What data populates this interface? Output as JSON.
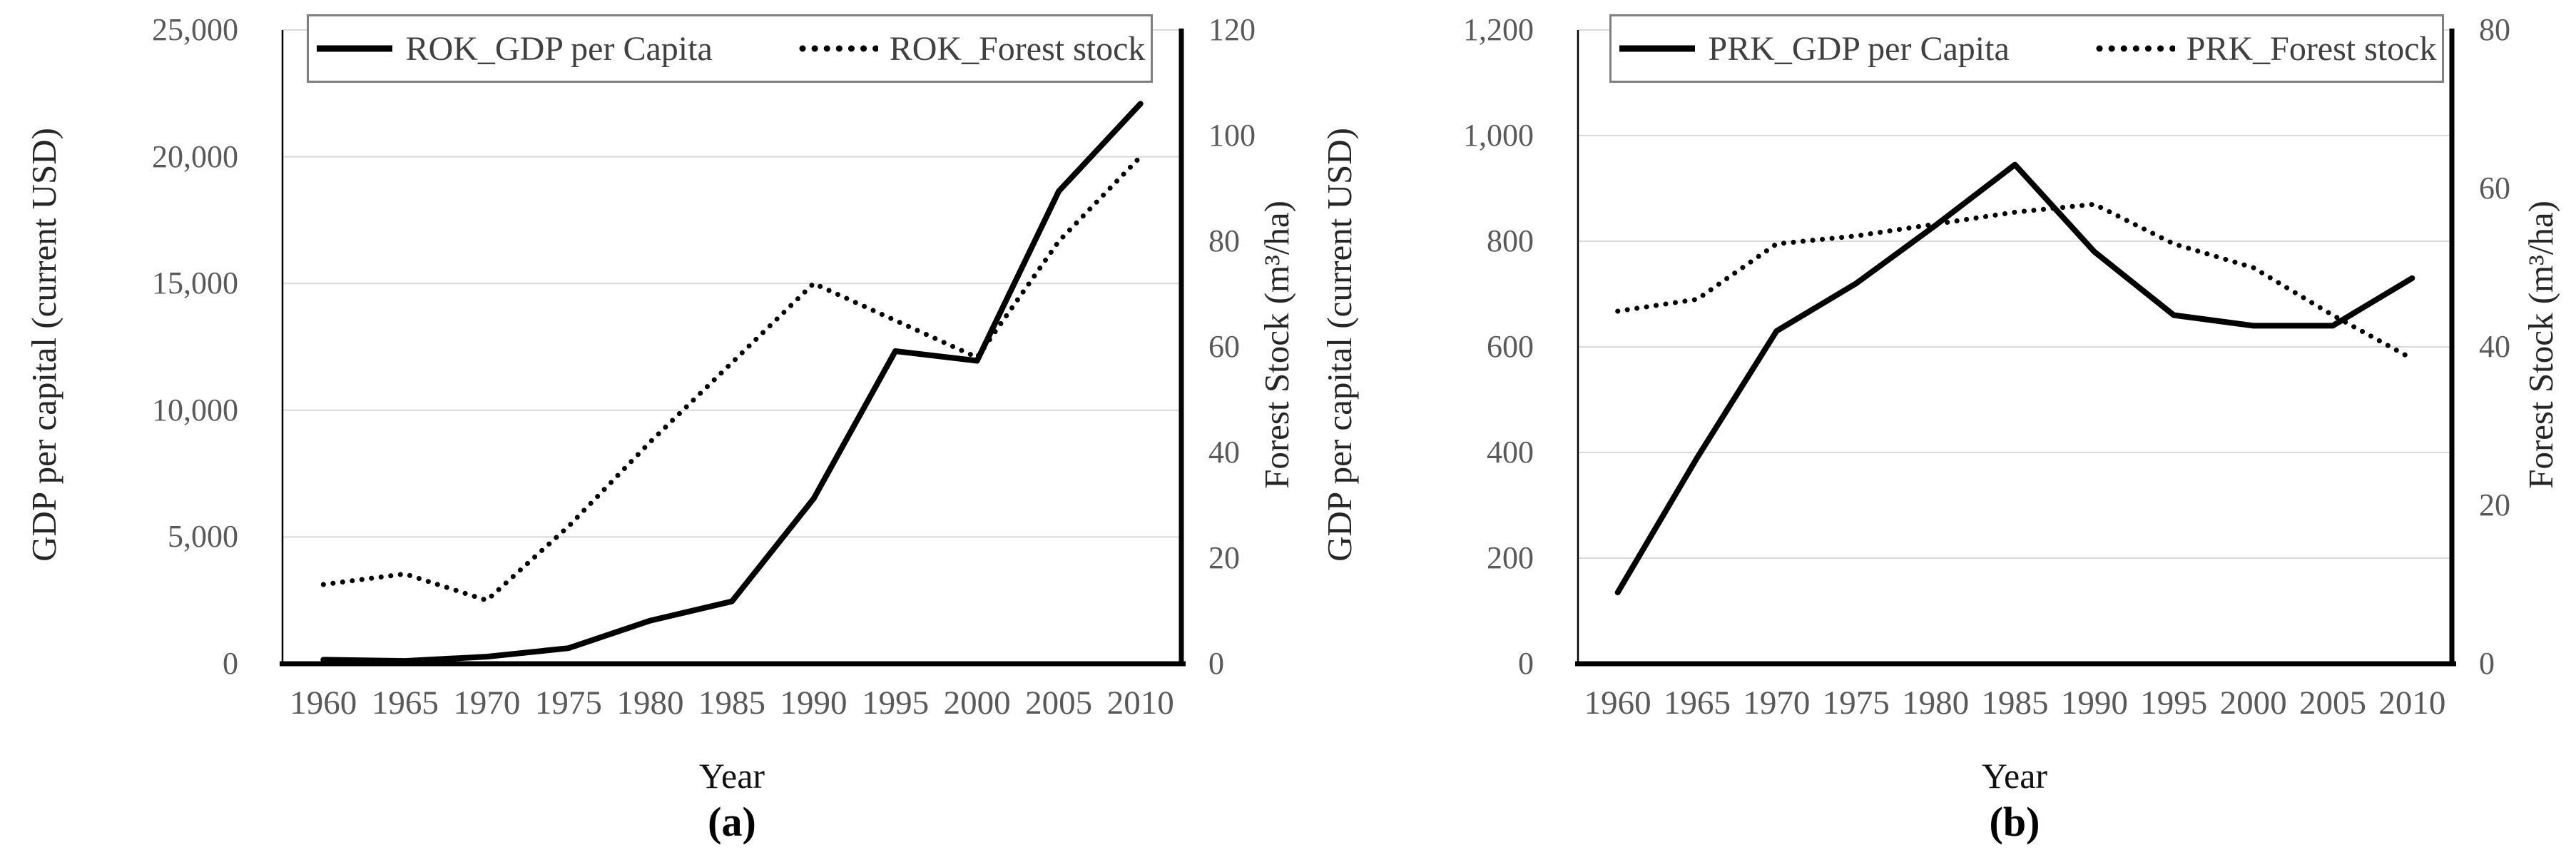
{
  "figure": {
    "background": "#ffffff"
  },
  "colors": {
    "line": "#000000",
    "grid": "#d9d9d9",
    "tick_text": "#595959",
    "axis_title_text": "#262626",
    "legend_border": "#7f7f7f",
    "axis_line": "#000000"
  },
  "chart_data": [
    {
      "id": "a",
      "type": "line",
      "caption": "(a)",
      "x_label": "Year",
      "y_left_label": "GDP per capital (current USD)",
      "y_right_label": "Forest Stock (m³/ha)",
      "x": [
        1960,
        1965,
        1970,
        1975,
        1980,
        1985,
        1990,
        1995,
        2000,
        2005,
        2010
      ],
      "x_ticks": [
        "1960",
        "1965",
        "1970",
        "1975",
        "1980",
        "1985",
        "1990",
        "1995",
        "2000",
        "2005",
        "2010"
      ],
      "y_left_ticks": [
        "25,000",
        "20,000",
        "15,000",
        "10,000",
        "5,000",
        "0"
      ],
      "y_right_ticks": [
        "120",
        "100",
        "80",
        "60",
        "40",
        "20",
        "0"
      ],
      "y_left_range": [
        0,
        25000
      ],
      "y_right_range": [
        0,
        120
      ],
      "grid": "horizontal-on",
      "legend_position": "top",
      "series": [
        {
          "name": "ROK_GDP per Capita",
          "axis": "left",
          "style": "solid",
          "values": [
            158,
            110,
            280,
            615,
            1700,
            2460,
            6510,
            12330,
            11950,
            18640,
            22090
          ]
        },
        {
          "name": "ROK_Forest stock",
          "axis": "right",
          "style": "dotted",
          "values": [
            15,
            17,
            12,
            26,
            42,
            57,
            72,
            65,
            58,
            80,
            96
          ]
        }
      ]
    },
    {
      "id": "b",
      "type": "line",
      "caption": "(b)",
      "x_label": "Year",
      "y_left_label": "GDP per capital (current USD)",
      "y_right_label": "Forest Stock (m³/ha)",
      "x": [
        1960,
        1965,
        1970,
        1975,
        1980,
        1985,
        1990,
        1995,
        2000,
        2005,
        2010
      ],
      "x_ticks": [
        "1960",
        "1965",
        "1970",
        "1975",
        "1980",
        "1985",
        "1990",
        "1995",
        "2000",
        "2005",
        "2010"
      ],
      "y_left_ticks": [
        "1,200",
        "1,000",
        "800",
        "600",
        "400",
        "200",
        "0"
      ],
      "y_right_ticks": [
        "80",
        "60",
        "40",
        "20",
        "0"
      ],
      "y_left_range": [
        0,
        1200
      ],
      "y_right_range": [
        0,
        80
      ],
      "grid": "horizontal-on",
      "legend_position": "top",
      "series": [
        {
          "name": "PRK_GDP per Capita",
          "axis": "left",
          "style": "solid",
          "values": [
            135,
            390,
            630,
            720,
            830,
            945,
            780,
            660,
            640,
            640,
            730
          ]
        },
        {
          "name": "PRK_Forest stock",
          "axis": "right",
          "style": "dotted",
          "values": [
            44.5,
            46,
            53,
            54,
            55.5,
            57,
            58,
            53,
            50,
            44,
            38.5
          ]
        }
      ]
    }
  ]
}
